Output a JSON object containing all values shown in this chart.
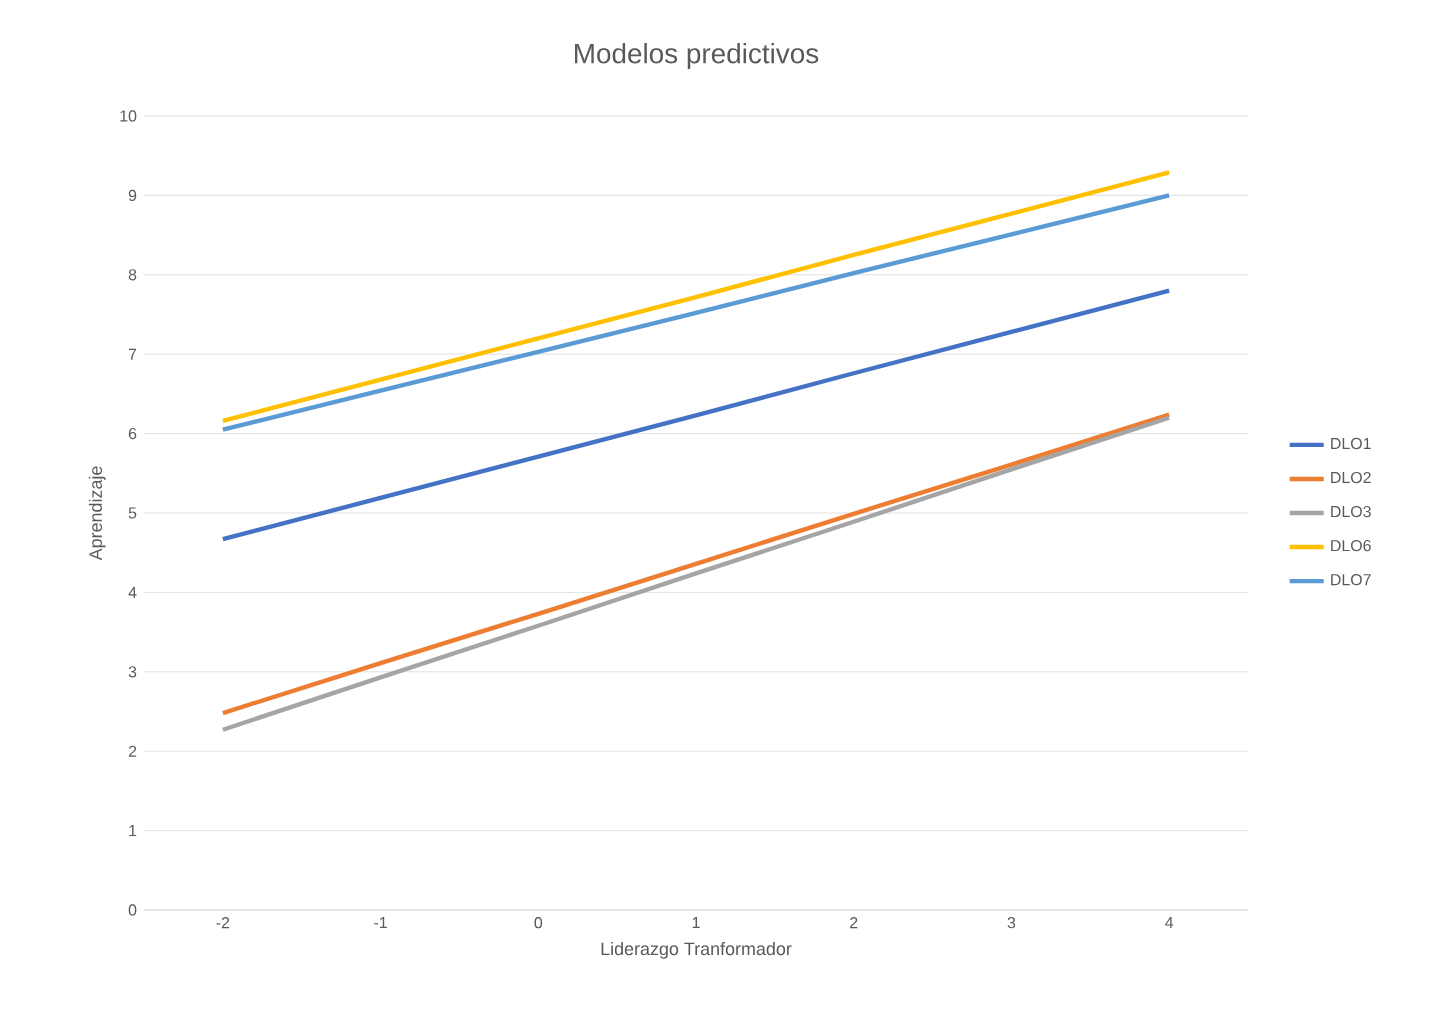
{
  "chart_data": {
    "type": "line",
    "title": "Modelos predictivos",
    "xlabel": "Liderazgo Tranformador",
    "ylabel": "Aprendizaje",
    "categories": [
      "-2",
      "-1",
      "0",
      "1",
      "2",
      "3",
      "4"
    ],
    "series": [
      {
        "name": "DLO1",
        "color": "#4472c4",
        "values": [
          4.67,
          5.19,
          5.71,
          6.23,
          6.76,
          7.28,
          7.8
        ]
      },
      {
        "name": "DLO2",
        "color": "#ed7d31",
        "values": [
          2.48,
          3.11,
          3.73,
          4.36,
          4.99,
          5.61,
          6.24
        ]
      },
      {
        "name": "DLO3",
        "color": "#a5a5a5",
        "values": [
          2.27,
          2.93,
          3.58,
          4.24,
          4.89,
          5.55,
          6.2
        ]
      },
      {
        "name": "DLO6",
        "color": "#ffc000",
        "values": [
          6.16,
          6.68,
          7.2,
          7.72,
          8.25,
          8.77,
          9.29
        ]
      },
      {
        "name": "DLO7",
        "color": "#5b9bd5",
        "values": [
          6.05,
          6.54,
          7.03,
          7.52,
          8.02,
          8.51,
          9.0
        ]
      }
    ],
    "ylim": [
      0,
      10
    ],
    "yticks": [
      0,
      1,
      2,
      3,
      4,
      5,
      6,
      7,
      8,
      9,
      10
    ],
    "grid": "y",
    "legend": "right"
  }
}
